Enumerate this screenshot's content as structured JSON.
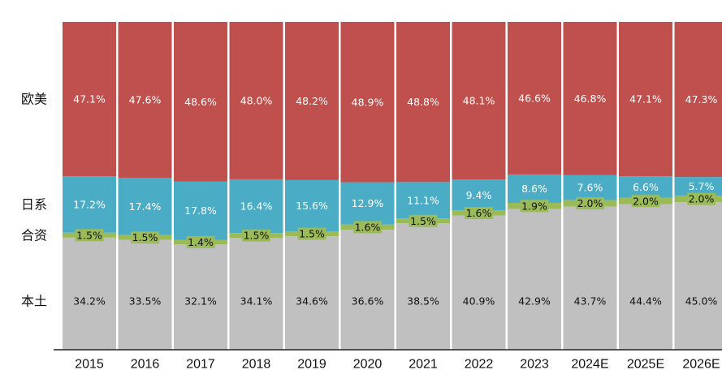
{
  "chart_data": {
    "type": "bar",
    "stacked": true,
    "normalized": true,
    "unit": "%",
    "categories": [
      "2015",
      "2016",
      "2017",
      "2018",
      "2019",
      "2020",
      "2021",
      "2022",
      "2023",
      "2024E",
      "2025E",
      "2026E"
    ],
    "series": [
      {
        "name": "本土",
        "color": "#c0c0c0",
        "label_color": "#111111",
        "values": [
          34.2,
          33.5,
          32.1,
          34.1,
          34.6,
          36.6,
          38.5,
          40.9,
          42.9,
          43.7,
          44.4,
          45.0
        ],
        "labels": [
          "34.2%",
          "33.5%",
          "32.1%",
          "34.1%",
          "34.6%",
          "36.6%",
          "38.5%",
          "40.9%",
          "42.9%",
          "43.7%",
          "44.4%",
          "45.0%"
        ]
      },
      {
        "name": "合资",
        "color": "#9bbb59",
        "label_color": "#111111",
        "values": [
          1.5,
          1.5,
          1.4,
          1.5,
          1.5,
          1.6,
          1.5,
          1.6,
          1.9,
          2.0,
          2.0,
          2.0
        ],
        "labels": [
          "1.5%",
          "1.5%",
          "1.4%",
          "1.5%",
          "1.5%",
          "1.6%",
          "1.5%",
          "1.6%",
          "1.9%",
          "2.0%",
          "2.0%",
          "2.0%"
        ]
      },
      {
        "name": "日系",
        "color": "#4bacc6",
        "label_color": "#ffffff",
        "values": [
          17.2,
          17.4,
          17.8,
          16.4,
          15.6,
          12.9,
          11.1,
          9.4,
          8.6,
          7.6,
          6.6,
          5.7
        ],
        "labels": [
          "17.2%",
          "17.4%",
          "17.8%",
          "16.4%",
          "15.6%",
          "12.9%",
          "11.1%",
          "9.4%",
          "8.6%",
          "7.6%",
          "6.6%",
          "5.7%"
        ]
      },
      {
        "name": "欧美",
        "color": "#c0504d",
        "label_color": "#ffffff",
        "values": [
          47.1,
          47.6,
          48.6,
          48.0,
          48.2,
          48.9,
          48.8,
          48.1,
          46.6,
          46.8,
          47.1,
          47.3
        ],
        "labels": [
          "47.1%",
          "47.6%",
          "48.6%",
          "48.0%",
          "48.2%",
          "48.9%",
          "48.8%",
          "48.1%",
          "46.6%",
          "46.8%",
          "47.1%",
          "47.3%"
        ]
      }
    ],
    "ylim": [
      0,
      100
    ],
    "grid": false,
    "legend": "series names at left of bars"
  }
}
